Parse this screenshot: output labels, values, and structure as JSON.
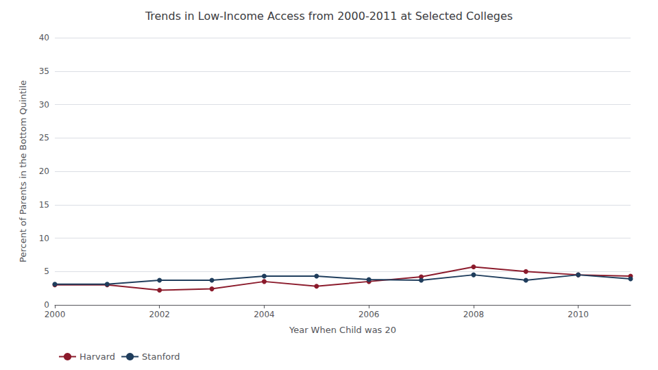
{
  "chart_data": {
    "type": "line",
    "title": "Trends in Low-Income Access from 2000-2011 at Selected Colleges",
    "xlabel": "Year When Child was 20",
    "ylabel": "Percent of Parents in the Bottom Quintile",
    "x": [
      2000,
      2001,
      2002,
      2003,
      2004,
      2005,
      2006,
      2007,
      2008,
      2009,
      2010,
      2011
    ],
    "series": [
      {
        "name": "Harvard",
        "color": "#8B1A2B",
        "marker": "circle",
        "values": [
          3.0,
          3.0,
          2.2,
          2.4,
          3.5,
          2.8,
          3.5,
          4.2,
          5.7,
          5.0,
          4.5,
          4.3
        ]
      },
      {
        "name": "Stanford",
        "color": "#1F3D5C",
        "marker": "circle",
        "values": [
          3.1,
          3.1,
          3.7,
          3.7,
          4.3,
          4.3,
          3.8,
          3.7,
          4.5,
          3.7,
          4.5,
          3.9
        ]
      }
    ],
    "xlim": [
      2000,
      2011
    ],
    "xticks": [
      2000,
      2002,
      2004,
      2006,
      2008,
      2010
    ],
    "ylim": [
      0,
      40
    ],
    "yticks": [
      0,
      5,
      10,
      15,
      20,
      25,
      30,
      35,
      40
    ],
    "grid": true,
    "legend": "lower left"
  }
}
